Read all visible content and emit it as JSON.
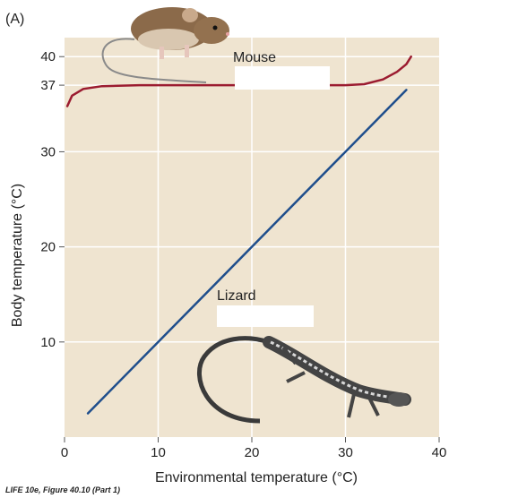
{
  "panel_label": "(A)",
  "credit": "LIFE 10e, Figure 40.10 (Part 1)",
  "colors": {
    "plot_background": "#efe4d0",
    "gridline": "#ffffff",
    "mouse_line": "#9b1b30",
    "lizard_line": "#1f4e8c",
    "label_box": "#ffffff"
  },
  "chart_data": {
    "type": "line",
    "title": "",
    "xlabel": "Environmental temperature (°C)",
    "ylabel": "Body temperature (°C)",
    "xlim": [
      0,
      40
    ],
    "ylim": [
      0,
      42
    ],
    "x_ticks": [
      0,
      10,
      20,
      30,
      40
    ],
    "y_ticks": [
      10,
      20,
      30,
      37,
      40
    ],
    "grid": true,
    "series": [
      {
        "name": "Mouse",
        "color": "#9b1b30",
        "points": [
          [
            0.3,
            34.8
          ],
          [
            0.8,
            35.9
          ],
          [
            2,
            36.6
          ],
          [
            4,
            36.9
          ],
          [
            8,
            37.0
          ],
          [
            15,
            37.0
          ],
          [
            25,
            37.0
          ],
          [
            30,
            37.0
          ],
          [
            32,
            37.1
          ],
          [
            34,
            37.6
          ],
          [
            35.5,
            38.4
          ],
          [
            36.5,
            39.2
          ],
          [
            37,
            40.0
          ]
        ]
      },
      {
        "name": "Lizard",
        "color": "#1f4e8c",
        "points": [
          [
            2.5,
            2.5
          ],
          [
            36.5,
            36.5
          ]
        ]
      }
    ]
  }
}
